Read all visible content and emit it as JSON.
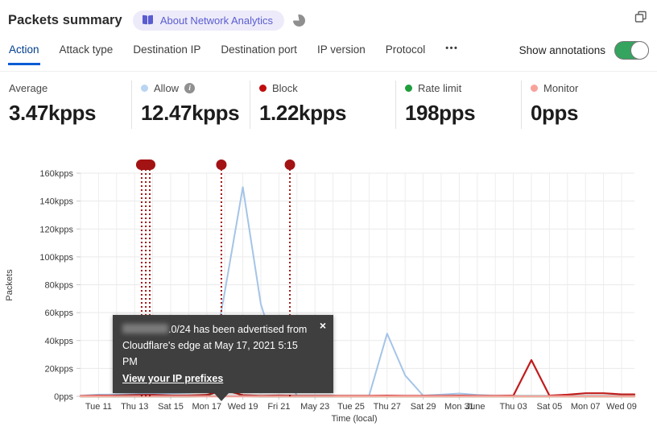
{
  "header": {
    "title": "Packets summary",
    "about_badge": "About Network Analytics"
  },
  "tabs": {
    "items": [
      {
        "label": "Action",
        "active": true
      },
      {
        "label": "Attack type",
        "active": false
      },
      {
        "label": "Destination IP",
        "active": false
      },
      {
        "label": "Destination port",
        "active": false
      },
      {
        "label": "IP version",
        "active": false
      },
      {
        "label": "Protocol",
        "active": false
      }
    ],
    "more_label": "•••"
  },
  "annotations_toggle": {
    "label": "Show annotations",
    "on": true
  },
  "stats": [
    {
      "label": "Average",
      "value": "3.47kpps",
      "dot": "",
      "info": false
    },
    {
      "label": "Allow",
      "value": "12.47kpps",
      "dot": "#b9d5f2",
      "info": true
    },
    {
      "label": "Block",
      "value": "1.22kpps",
      "dot": "#c00d0d",
      "info": false
    },
    {
      "label": "Rate limit",
      "value": "198pps",
      "dot": "#1f9e3c",
      "info": false
    },
    {
      "label": "Monitor",
      "value": "0pps",
      "dot": "#f7a29b",
      "info": false
    }
  ],
  "tooltip": {
    "line1_suffix": ".0/24 has been advertised from",
    "line2": "Cloudflare's edge at May 17, 2021 5:15 PM",
    "link": "View your IP prefixes",
    "close": "×"
  },
  "chart_data": {
    "type": "line",
    "xlabel": "Time (local)",
    "ylabel": "Packets",
    "ylim": [
      0,
      160
    ],
    "y_step": 20,
    "y_tick_labels": [
      "0pps",
      "20kpps",
      "40kpps",
      "60kpps",
      "80kpps",
      "100kpps",
      "120kpps",
      "140kpps",
      "160kpps"
    ],
    "x_ticks": [
      {
        "day": 1,
        "label": "Tue 11"
      },
      {
        "day": 3,
        "label": "Thu 13"
      },
      {
        "day": 5,
        "label": "Sat 15"
      },
      {
        "day": 7,
        "label": "Mon 17"
      },
      {
        "day": 9,
        "label": "Wed 19"
      },
      {
        "day": 11,
        "label": "Fri 21"
      },
      {
        "day": 13,
        "label": "May 23"
      },
      {
        "day": 15,
        "label": "Tue 25"
      },
      {
        "day": 17,
        "label": "Thu 27"
      },
      {
        "day": 19,
        "label": "Sat 29"
      },
      {
        "day": 21,
        "label": "Mon 31"
      },
      {
        "day": 21.9,
        "label": "June",
        "overlap": true
      },
      {
        "day": 24,
        "label": "Thu 03"
      },
      {
        "day": 26,
        "label": "Sat 05"
      },
      {
        "day": 28,
        "label": "Mon 07"
      },
      {
        "day": 30,
        "label": "Wed 09"
      }
    ],
    "x_start_date": "May 10",
    "x_end_date": "Jun 09",
    "series": [
      {
        "id": "allow",
        "name": "Allow",
        "color": "#a5c4e7",
        "width": 2,
        "values": [
          0.4,
          1.2,
          1.3,
          1.6,
          2.2,
          2.2,
          2.6,
          3.5,
          75,
          150,
          66,
          25,
          0.4,
          0.4,
          0.4,
          0.4,
          0.4,
          45,
          15,
          0.5,
          1.2,
          2,
          1,
          0.4,
          0.4,
          0.4,
          0.4,
          0.4,
          0.4,
          0.4,
          0.4
        ]
      },
      {
        "id": "rate-limit",
        "name": "Rate limit",
        "color": "#23a03c",
        "width": 2.4,
        "values": [
          0,
          0,
          0,
          0,
          0,
          0,
          0,
          0.2,
          6.5,
          0.2,
          0,
          0,
          0,
          0,
          0,
          0,
          0,
          0,
          0,
          0,
          0,
          0,
          0,
          0,
          0,
          0,
          0,
          0,
          0,
          0,
          0
        ]
      },
      {
        "id": "block",
        "name": "Block",
        "color": "#c11b1b",
        "width": 2.2,
        "values": [
          0.3,
          0.5,
          0.5,
          0.9,
          1.0,
          0.6,
          0.6,
          1.0,
          4.5,
          0.8,
          0.4,
          0.6,
          0.4,
          0.4,
          0.4,
          0.4,
          0.4,
          0.5,
          0.4,
          0.4,
          0.4,
          0.5,
          0.4,
          0.4,
          0.5,
          26,
          0.5,
          1.2,
          2.2,
          2.2,
          1.4
        ]
      },
      {
        "id": "monitor",
        "name": "Monitor",
        "color": "#f5a79f",
        "width": 2.6,
        "values": [
          0,
          0,
          0,
          0,
          0,
          0,
          0,
          0,
          0,
          0,
          0,
          0,
          0,
          0,
          0,
          0,
          0,
          0,
          0,
          0,
          0,
          0,
          0,
          0,
          0,
          0,
          0,
          0,
          0,
          0,
          0
        ]
      }
    ],
    "annotation_color": "#a31313",
    "annotations": [
      {
        "kind": "group",
        "days": [
          3.39,
          3.62,
          3.84
        ]
      },
      {
        "kind": "single",
        "day": 7.81
      },
      {
        "kind": "single",
        "day": 11.61
      }
    ]
  }
}
